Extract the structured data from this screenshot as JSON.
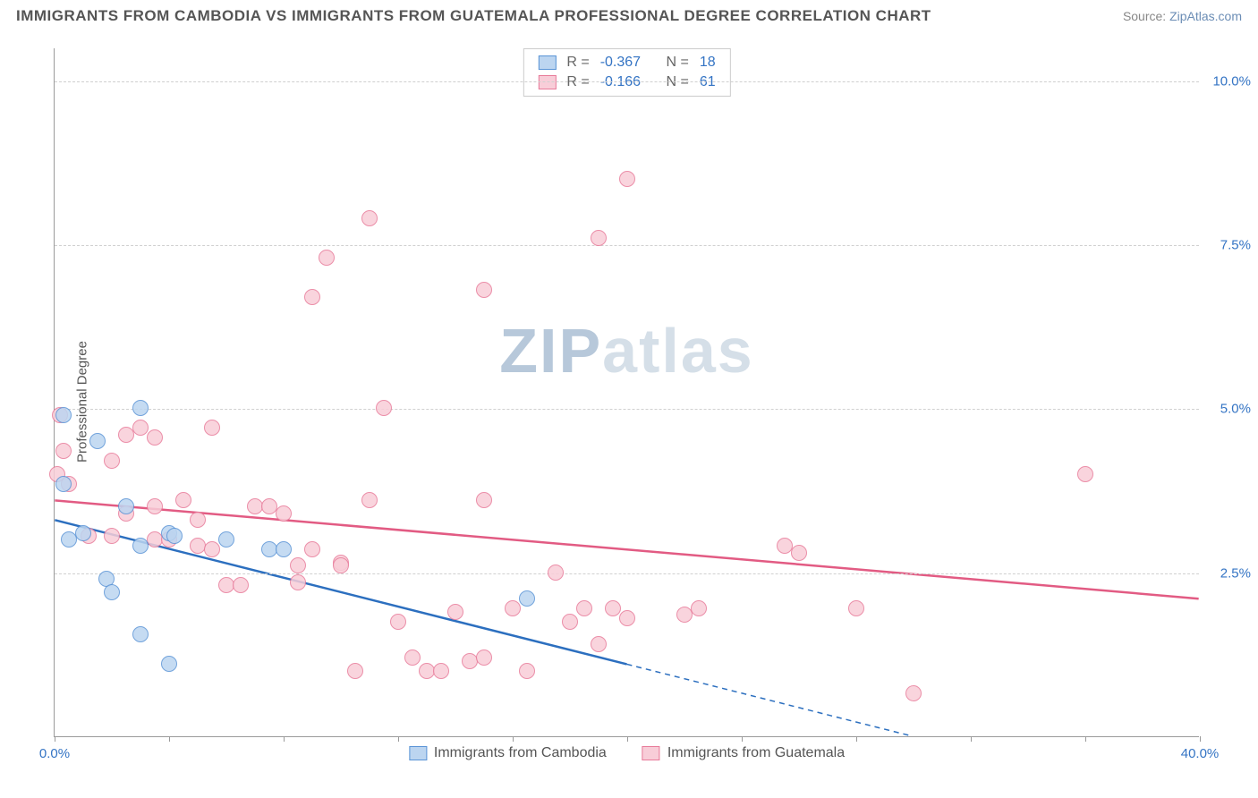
{
  "title": "IMMIGRANTS FROM CAMBODIA VS IMMIGRANTS FROM GUATEMALA PROFESSIONAL DEGREE CORRELATION CHART",
  "source_label": "Source:",
  "source_name": "ZipAtlas.com",
  "ylabel": "Professional Degree",
  "watermark_zip": "ZIP",
  "watermark_rest": "atlas",
  "chart": {
    "type": "scatter",
    "xlim": [
      0,
      40
    ],
    "ylim": [
      0,
      10.5
    ],
    "x_ticks_minor": [
      0,
      4,
      8,
      12,
      16,
      20,
      24,
      28,
      32,
      36,
      40
    ],
    "x_tick_labels": [
      {
        "pos": 0,
        "text": "0.0%"
      },
      {
        "pos": 40,
        "text": "40.0%"
      }
    ],
    "y_gridlines": [
      2.5,
      5.0,
      7.5,
      10.0
    ],
    "y_tick_labels": [
      {
        "pos": 2.5,
        "text": "2.5%"
      },
      {
        "pos": 5.0,
        "text": "5.0%"
      },
      {
        "pos": 7.5,
        "text": "7.5%"
      },
      {
        "pos": 10.0,
        "text": "10.0%"
      }
    ],
    "grid_color": "#d0d0d0",
    "background_color": "#ffffff"
  },
  "series": [
    {
      "name": "Immigrants from Cambodia",
      "fill": "#bcd5f0",
      "stroke": "#5a94d6",
      "line_color": "#2c6fbf",
      "r_label": "R =",
      "r_value": "-0.367",
      "n_label": "N =",
      "n_value": "18",
      "trend": {
        "x1": 0,
        "y1": 3.3,
        "x2": 20,
        "y2": 1.1,
        "dash_extend_x": 30,
        "dash_extend_y": 0
      },
      "point_radius": 9,
      "points": [
        [
          0.3,
          4.9
        ],
        [
          0.3,
          3.85
        ],
        [
          1.5,
          4.5
        ],
        [
          1.0,
          3.1
        ],
        [
          2.5,
          3.5
        ],
        [
          3.0,
          5.0
        ],
        [
          1.8,
          2.4
        ],
        [
          2.0,
          2.2
        ],
        [
          3.0,
          1.55
        ],
        [
          3.0,
          2.9
        ],
        [
          4.0,
          3.1
        ],
        [
          4.2,
          3.05
        ],
        [
          4.0,
          1.1
        ],
        [
          7.5,
          2.85
        ],
        [
          8.0,
          2.85
        ],
        [
          16.5,
          2.1
        ],
        [
          6.0,
          3.0
        ],
        [
          0.5,
          3.0
        ]
      ]
    },
    {
      "name": "Immigrants from Guatemala",
      "fill": "#f8cdd8",
      "stroke": "#e87b9a",
      "line_color": "#e25b83",
      "r_label": "R =",
      "r_value": "-0.166",
      "n_label": "N =",
      "n_value": "61",
      "trend": {
        "x1": 0,
        "y1": 3.6,
        "x2": 40,
        "y2": 2.1
      },
      "point_radius": 9,
      "points": [
        [
          0.2,
          4.9
        ],
        [
          0.3,
          4.35
        ],
        [
          0.5,
          3.85
        ],
        [
          1.2,
          3.05
        ],
        [
          2.0,
          4.2
        ],
        [
          2.0,
          3.05
        ],
        [
          2.5,
          4.6
        ],
        [
          3.0,
          4.7
        ],
        [
          3.5,
          4.55
        ],
        [
          2.5,
          3.4
        ],
        [
          3.5,
          3.5
        ],
        [
          3.5,
          3.0
        ],
        [
          4.0,
          3.0
        ],
        [
          4.5,
          3.6
        ],
        [
          5.0,
          3.3
        ],
        [
          5.0,
          2.9
        ],
        [
          5.5,
          2.85
        ],
        [
          6.0,
          2.3
        ],
        [
          6.5,
          2.3
        ],
        [
          7.0,
          3.5
        ],
        [
          7.5,
          3.5
        ],
        [
          8.0,
          3.4
        ],
        [
          8.5,
          2.35
        ],
        [
          8.5,
          2.6
        ],
        [
          9.0,
          2.85
        ],
        [
          9.0,
          6.7
        ],
        [
          9.5,
          7.3
        ],
        [
          10.0,
          2.65
        ],
        [
          10.0,
          2.6
        ],
        [
          10.5,
          1.0
        ],
        [
          11.0,
          7.9
        ],
        [
          11.0,
          3.6
        ],
        [
          11.5,
          5.0
        ],
        [
          12.0,
          1.75
        ],
        [
          12.5,
          1.2
        ],
        [
          13.0,
          1.0
        ],
        [
          13.5,
          1.0
        ],
        [
          14.0,
          1.9
        ],
        [
          14.5,
          1.15
        ],
        [
          15.0,
          6.8
        ],
        [
          15.0,
          3.6
        ],
        [
          15.0,
          1.2
        ],
        [
          16.0,
          1.95
        ],
        [
          16.5,
          1.0
        ],
        [
          17.5,
          2.5
        ],
        [
          18.0,
          1.75
        ],
        [
          18.5,
          1.95
        ],
        [
          19.0,
          7.6
        ],
        [
          19.0,
          1.4
        ],
        [
          19.5,
          1.95
        ],
        [
          20.0,
          8.5
        ],
        [
          20.0,
          1.8
        ],
        [
          22.0,
          1.85
        ],
        [
          22.5,
          1.95
        ],
        [
          26.0,
          2.8
        ],
        [
          28.0,
          1.95
        ],
        [
          25.5,
          2.9
        ],
        [
          30.0,
          0.65
        ],
        [
          36.0,
          4.0
        ],
        [
          0.1,
          4.0
        ],
        [
          5.5,
          4.7
        ]
      ]
    }
  ]
}
